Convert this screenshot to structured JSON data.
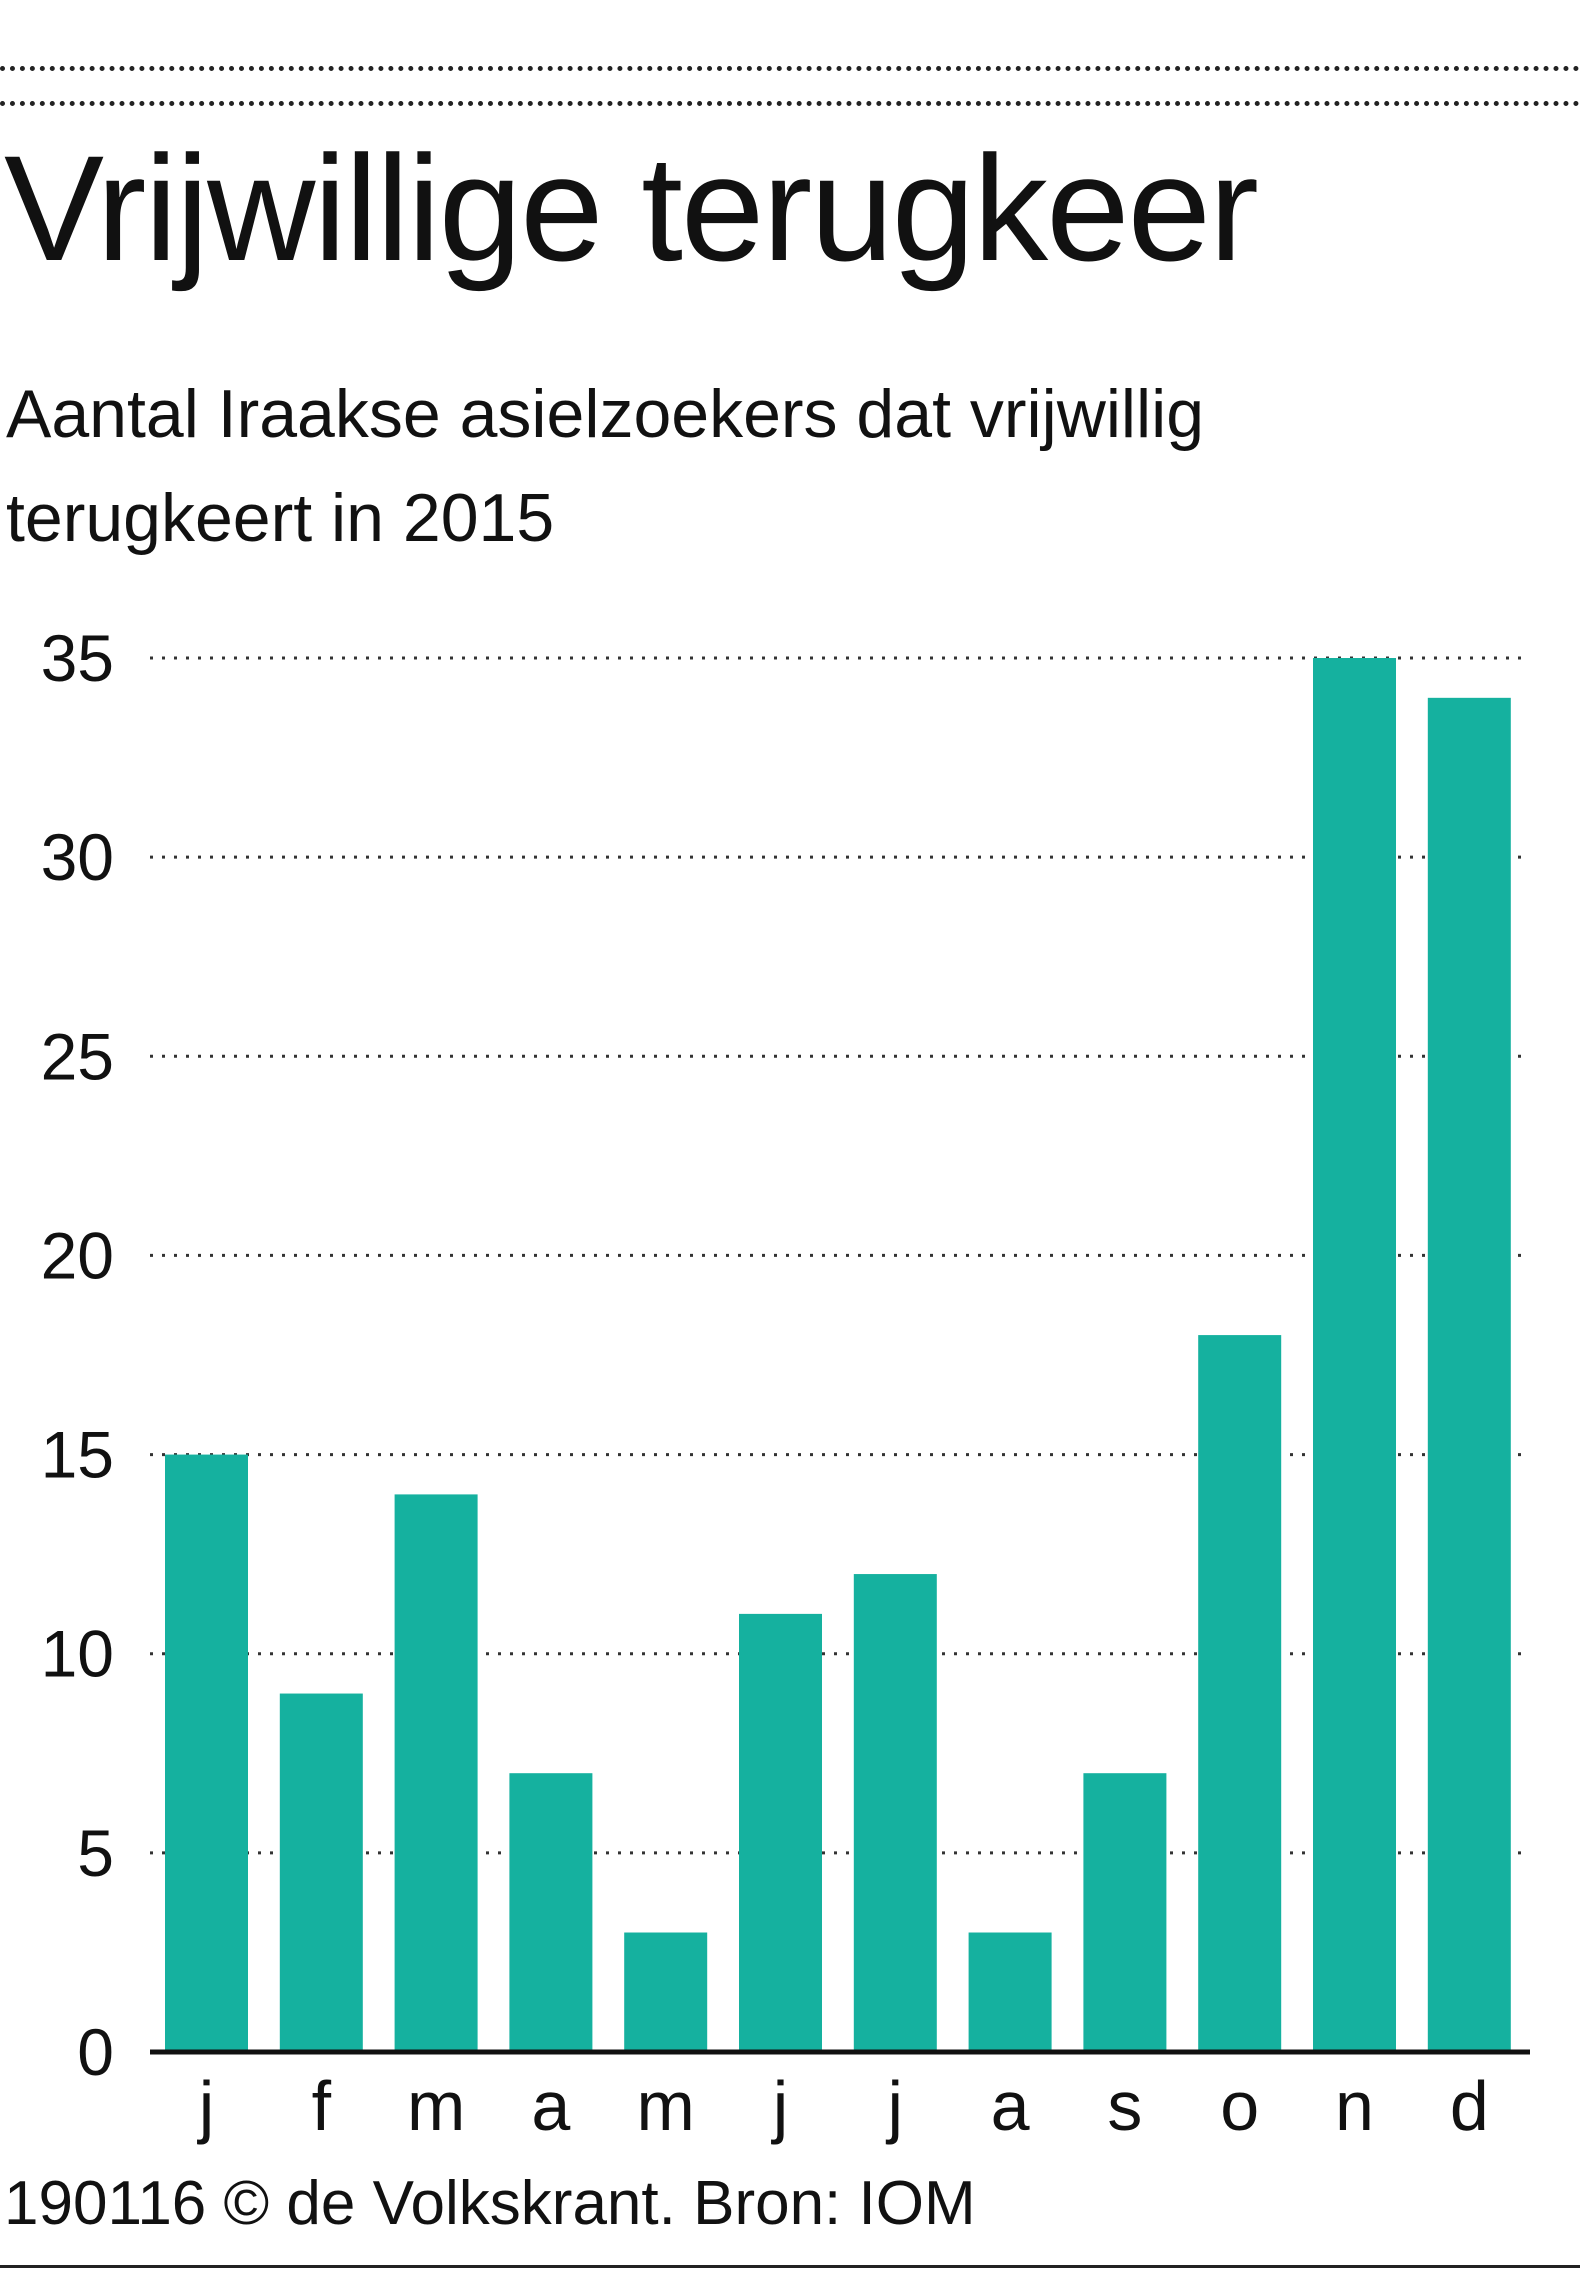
{
  "header": {
    "title": "Vrijwillige terugkeer",
    "subtitle": "Aantal Iraakse asielzoekers dat vrijwillig terugkeert in 2015"
  },
  "footer": {
    "credit": "190116 © de Volkskrant. Bron: IOM"
  },
  "colors": {
    "bar": "#15b19f",
    "grid": "#333333",
    "axis": "#111111",
    "text": "#111111"
  },
  "chart_data": {
    "type": "bar",
    "title": "Vrijwillige terugkeer",
    "subtitle": "Aantal Iraakse asielzoekers dat vrijwillig terugkeert in 2015",
    "xlabel": "",
    "ylabel": "",
    "categories": [
      "j",
      "f",
      "m",
      "a",
      "m",
      "j",
      "j",
      "a",
      "s",
      "o",
      "n",
      "d"
    ],
    "values": [
      15,
      9,
      14,
      7,
      3,
      11,
      12,
      3,
      7,
      18,
      35,
      34
    ],
    "ylim": [
      0,
      35
    ],
    "yticks": [
      0,
      5,
      10,
      15,
      20,
      25,
      30,
      35
    ],
    "grid": "dotted horizontal",
    "legend": "none",
    "source": "IOM"
  }
}
